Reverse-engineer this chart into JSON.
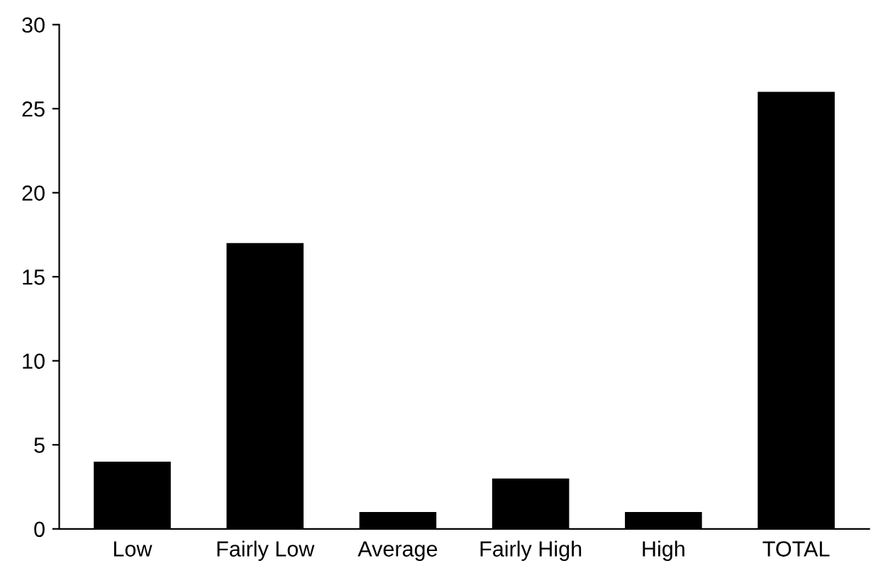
{
  "chart_data": {
    "type": "bar",
    "categories": [
      "Low",
      "Fairly Low",
      "Average",
      "Fairly High",
      "High",
      "TOTAL"
    ],
    "values": [
      4,
      17,
      1,
      3,
      1,
      26
    ],
    "color": "#000000",
    "ylim": [
      0,
      30
    ],
    "yticks": [
      0,
      5,
      10,
      15,
      20,
      25,
      30
    ],
    "grid": false,
    "legend": false
  }
}
